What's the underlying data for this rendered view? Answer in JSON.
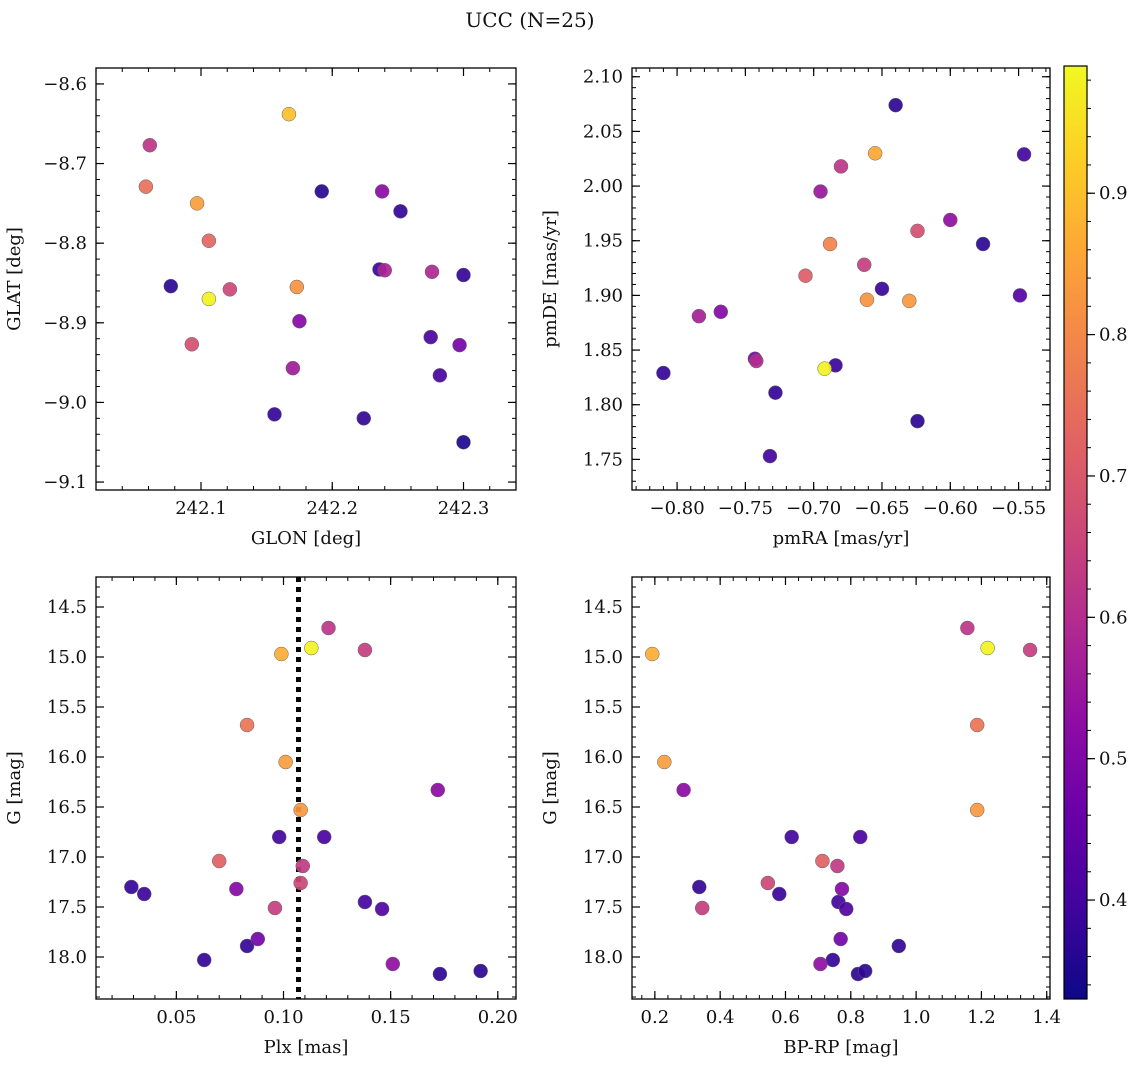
{
  "figure": {
    "title": "UCC (N=25)"
  },
  "colorbar": {
    "range": [
      0.33,
      0.99
    ],
    "ticks": [
      0.4,
      0.5,
      0.6,
      0.7,
      0.8,
      0.9
    ],
    "tick_labels": [
      "0.4",
      "0.5",
      "0.6",
      "0.7",
      "0.8",
      "0.9"
    ],
    "colormap": "plasma"
  },
  "chart_data": [
    {
      "type": "scatter",
      "id": "glon-glat",
      "xlabel": "GLON [deg]",
      "ylabel": "GLAT [deg]",
      "xlim": [
        242.02,
        242.34
      ],
      "ylim": [
        -9.11,
        -8.58
      ],
      "y_inverted": false,
      "xticks": [
        242.1,
        242.2,
        242.3
      ],
      "xtick_labels": [
        "242.1",
        "242.2",
        "242.3"
      ],
      "yticks": [
        -8.6,
        -8.7,
        -8.8,
        -8.9,
        -9.0,
        -9.1
      ],
      "ytick_labels": [
        "−8.6",
        "−8.7",
        "−8.8",
        "−8.9",
        "−9.0",
        "−9.1"
      ],
      "points": [
        {
          "x": 242.167,
          "y": -8.638,
          "c": 0.9
        },
        {
          "x": 242.061,
          "y": -8.677,
          "c": 0.62
        },
        {
          "x": 242.058,
          "y": -8.729,
          "c": 0.75
        },
        {
          "x": 242.097,
          "y": -8.75,
          "c": 0.84
        },
        {
          "x": 242.192,
          "y": -8.735,
          "c": 0.36
        },
        {
          "x": 242.238,
          "y": -8.735,
          "c": 0.52
        },
        {
          "x": 242.252,
          "y": -8.76,
          "c": 0.38
        },
        {
          "x": 242.106,
          "y": -8.797,
          "c": 0.73
        },
        {
          "x": 242.077,
          "y": -8.854,
          "c": 0.37
        },
        {
          "x": 242.122,
          "y": -8.858,
          "c": 0.66
        },
        {
          "x": 242.106,
          "y": -8.87,
          "c": 0.98
        },
        {
          "x": 242.173,
          "y": -8.855,
          "c": 0.82
        },
        {
          "x": 242.236,
          "y": -8.833,
          "c": 0.39
        },
        {
          "x": 242.24,
          "y": -8.834,
          "c": 0.58
        },
        {
          "x": 242.276,
          "y": -8.836,
          "c": 0.59
        },
        {
          "x": 242.3,
          "y": -8.84,
          "c": 0.38
        },
        {
          "x": 242.175,
          "y": -8.898,
          "c": 0.51
        },
        {
          "x": 242.093,
          "y": -8.927,
          "c": 0.68
        },
        {
          "x": 242.17,
          "y": -8.957,
          "c": 0.56
        },
        {
          "x": 242.275,
          "y": -8.918,
          "c": 0.41
        },
        {
          "x": 242.297,
          "y": -8.928,
          "c": 0.48
        },
        {
          "x": 242.282,
          "y": -8.966,
          "c": 0.41
        },
        {
          "x": 242.156,
          "y": -9.015,
          "c": 0.38
        },
        {
          "x": 242.224,
          "y": -9.02,
          "c": 0.38
        },
        {
          "x": 242.3,
          "y": -9.05,
          "c": 0.35
        }
      ]
    },
    {
      "type": "scatter",
      "id": "pmra-pmde",
      "xlabel": "pmRA [mas/yr]",
      "ylabel": "pmDE [mas/yr]",
      "xlim": [
        -0.833,
        -0.527
      ],
      "ylim": [
        1.722,
        2.108
      ],
      "y_inverted": false,
      "xticks": [
        -0.8,
        -0.75,
        -0.7,
        -0.65,
        -0.6,
        -0.55
      ],
      "xtick_labels": [
        "−0.80",
        "−0.75",
        "−0.70",
        "−0.65",
        "−0.60",
        "−0.55"
      ],
      "yticks": [
        1.75,
        1.8,
        1.85,
        1.9,
        1.95,
        2.0,
        2.05,
        2.1
      ],
      "ytick_labels": [
        "1.75",
        "1.80",
        "1.85",
        "1.90",
        "1.95",
        "2.00",
        "2.05",
        "2.10"
      ],
      "points": [
        {
          "x": -0.64,
          "y": 2.074,
          "c": 0.37
        },
        {
          "x": -0.546,
          "y": 2.029,
          "c": 0.4
        },
        {
          "x": -0.655,
          "y": 2.03,
          "c": 0.86
        },
        {
          "x": -0.68,
          "y": 2.018,
          "c": 0.62
        },
        {
          "x": -0.695,
          "y": 1.995,
          "c": 0.55
        },
        {
          "x": -0.6,
          "y": 1.969,
          "c": 0.53
        },
        {
          "x": -0.624,
          "y": 1.959,
          "c": 0.68
        },
        {
          "x": -0.576,
          "y": 1.947,
          "c": 0.37
        },
        {
          "x": -0.688,
          "y": 1.947,
          "c": 0.79
        },
        {
          "x": -0.663,
          "y": 1.928,
          "c": 0.64
        },
        {
          "x": -0.706,
          "y": 1.918,
          "c": 0.71
        },
        {
          "x": -0.65,
          "y": 1.906,
          "c": 0.39
        },
        {
          "x": -0.661,
          "y": 1.896,
          "c": 0.82
        },
        {
          "x": -0.63,
          "y": 1.895,
          "c": 0.83
        },
        {
          "x": -0.549,
          "y": 1.9,
          "c": 0.43
        },
        {
          "x": -0.768,
          "y": 1.885,
          "c": 0.51
        },
        {
          "x": -0.784,
          "y": 1.881,
          "c": 0.57
        },
        {
          "x": -0.743,
          "y": 1.842,
          "c": 0.48
        },
        {
          "x": -0.742,
          "y": 1.84,
          "c": 0.6
        },
        {
          "x": -0.684,
          "y": 1.836,
          "c": 0.39
        },
        {
          "x": -0.692,
          "y": 1.833,
          "c": 0.98
        },
        {
          "x": -0.81,
          "y": 1.829,
          "c": 0.38
        },
        {
          "x": -0.728,
          "y": 1.811,
          "c": 0.38
        },
        {
          "x": -0.624,
          "y": 1.785,
          "c": 0.37
        },
        {
          "x": -0.732,
          "y": 1.753,
          "c": 0.4
        }
      ]
    },
    {
      "type": "scatter",
      "id": "plx-g",
      "xlabel": "Plx [mas]",
      "ylabel": "G [mag]",
      "xlim": [
        0.0125,
        0.2085
      ],
      "ylim": [
        18.42,
        14.2
      ],
      "y_inverted": true,
      "xticks": [
        0.05,
        0.1,
        0.15,
        0.2
      ],
      "xtick_labels": [
        "0.05",
        "0.10",
        "0.15",
        "0.20"
      ],
      "yticks": [
        14.5,
        15.0,
        15.5,
        16.0,
        16.5,
        17.0,
        17.5,
        18.0
      ],
      "ytick_labels": [
        "14.5",
        "15.0",
        "15.5",
        "16.0",
        "16.5",
        "17.0",
        "17.5",
        "18.0"
      ],
      "vline": 0.107,
      "points": [
        {
          "x": 0.121,
          "y": 14.71,
          "c": 0.62
        },
        {
          "x": 0.113,
          "y": 14.91,
          "c": 0.98
        },
        {
          "x": 0.099,
          "y": 14.97,
          "c": 0.87
        },
        {
          "x": 0.138,
          "y": 14.93,
          "c": 0.64
        },
        {
          "x": 0.083,
          "y": 15.68,
          "c": 0.76
        },
        {
          "x": 0.101,
          "y": 16.05,
          "c": 0.84
        },
        {
          "x": 0.172,
          "y": 16.33,
          "c": 0.52
        },
        {
          "x": 0.108,
          "y": 16.53,
          "c": 0.83
        },
        {
          "x": 0.098,
          "y": 16.8,
          "c": 0.4
        },
        {
          "x": 0.119,
          "y": 16.8,
          "c": 0.41
        },
        {
          "x": 0.07,
          "y": 17.04,
          "c": 0.72
        },
        {
          "x": 0.109,
          "y": 17.09,
          "c": 0.63
        },
        {
          "x": 0.108,
          "y": 17.26,
          "c": 0.66
        },
        {
          "x": 0.029,
          "y": 17.3,
          "c": 0.38
        },
        {
          "x": 0.035,
          "y": 17.37,
          "c": 0.39
        },
        {
          "x": 0.078,
          "y": 17.32,
          "c": 0.51
        },
        {
          "x": 0.138,
          "y": 17.45,
          "c": 0.4
        },
        {
          "x": 0.146,
          "y": 17.52,
          "c": 0.42
        },
        {
          "x": 0.096,
          "y": 17.51,
          "c": 0.64
        },
        {
          "x": 0.088,
          "y": 17.82,
          "c": 0.48
        },
        {
          "x": 0.083,
          "y": 17.89,
          "c": 0.38
        },
        {
          "x": 0.063,
          "y": 18.03,
          "c": 0.38
        },
        {
          "x": 0.151,
          "y": 18.07,
          "c": 0.53
        },
        {
          "x": 0.173,
          "y": 18.17,
          "c": 0.37
        },
        {
          "x": 0.192,
          "y": 18.14,
          "c": 0.37
        }
      ]
    },
    {
      "type": "scatter",
      "id": "bprp-g",
      "xlabel": "BP-RP [mag]",
      "ylabel": "G [mag]",
      "xlim": [
        0.13,
        1.41
      ],
      "ylim": [
        18.42,
        14.2
      ],
      "y_inverted": true,
      "xticks": [
        0.2,
        0.4,
        0.6,
        0.8,
        1.0,
        1.2,
        1.4
      ],
      "xtick_labels": [
        "0.2",
        "0.4",
        "0.6",
        "0.8",
        "1.0",
        "1.2",
        "1.4"
      ],
      "yticks": [
        14.5,
        15.0,
        15.5,
        16.0,
        16.5,
        17.0,
        17.5,
        18.0
      ],
      "ytick_labels": [
        "14.5",
        "15.0",
        "15.5",
        "16.0",
        "16.5",
        "17.0",
        "17.5",
        "18.0"
      ],
      "points": [
        {
          "x": 1.157,
          "y": 14.71,
          "c": 0.62
        },
        {
          "x": 1.219,
          "y": 14.91,
          "c": 0.98
        },
        {
          "x": 1.349,
          "y": 14.93,
          "c": 0.64
        },
        {
          "x": 0.192,
          "y": 14.97,
          "c": 0.87
        },
        {
          "x": 1.187,
          "y": 15.68,
          "c": 0.76
        },
        {
          "x": 0.229,
          "y": 16.05,
          "c": 0.84
        },
        {
          "x": 0.288,
          "y": 16.33,
          "c": 0.52
        },
        {
          "x": 1.187,
          "y": 16.53,
          "c": 0.83
        },
        {
          "x": 0.619,
          "y": 16.8,
          "c": 0.4
        },
        {
          "x": 0.829,
          "y": 16.8,
          "c": 0.41
        },
        {
          "x": 0.713,
          "y": 17.04,
          "c": 0.72
        },
        {
          "x": 0.759,
          "y": 17.09,
          "c": 0.63
        },
        {
          "x": 0.546,
          "y": 17.26,
          "c": 0.66
        },
        {
          "x": 0.336,
          "y": 17.3,
          "c": 0.38
        },
        {
          "x": 0.581,
          "y": 17.37,
          "c": 0.39
        },
        {
          "x": 0.773,
          "y": 17.32,
          "c": 0.51
        },
        {
          "x": 0.762,
          "y": 17.45,
          "c": 0.4
        },
        {
          "x": 0.786,
          "y": 17.52,
          "c": 0.42
        },
        {
          "x": 0.345,
          "y": 17.51,
          "c": 0.64
        },
        {
          "x": 0.769,
          "y": 17.82,
          "c": 0.48
        },
        {
          "x": 0.947,
          "y": 17.89,
          "c": 0.38
        },
        {
          "x": 0.745,
          "y": 18.03,
          "c": 0.38
        },
        {
          "x": 0.707,
          "y": 18.07,
          "c": 0.53
        },
        {
          "x": 0.822,
          "y": 18.17,
          "c": 0.37
        },
        {
          "x": 0.844,
          "y": 18.14,
          "c": 0.37
        }
      ]
    }
  ]
}
